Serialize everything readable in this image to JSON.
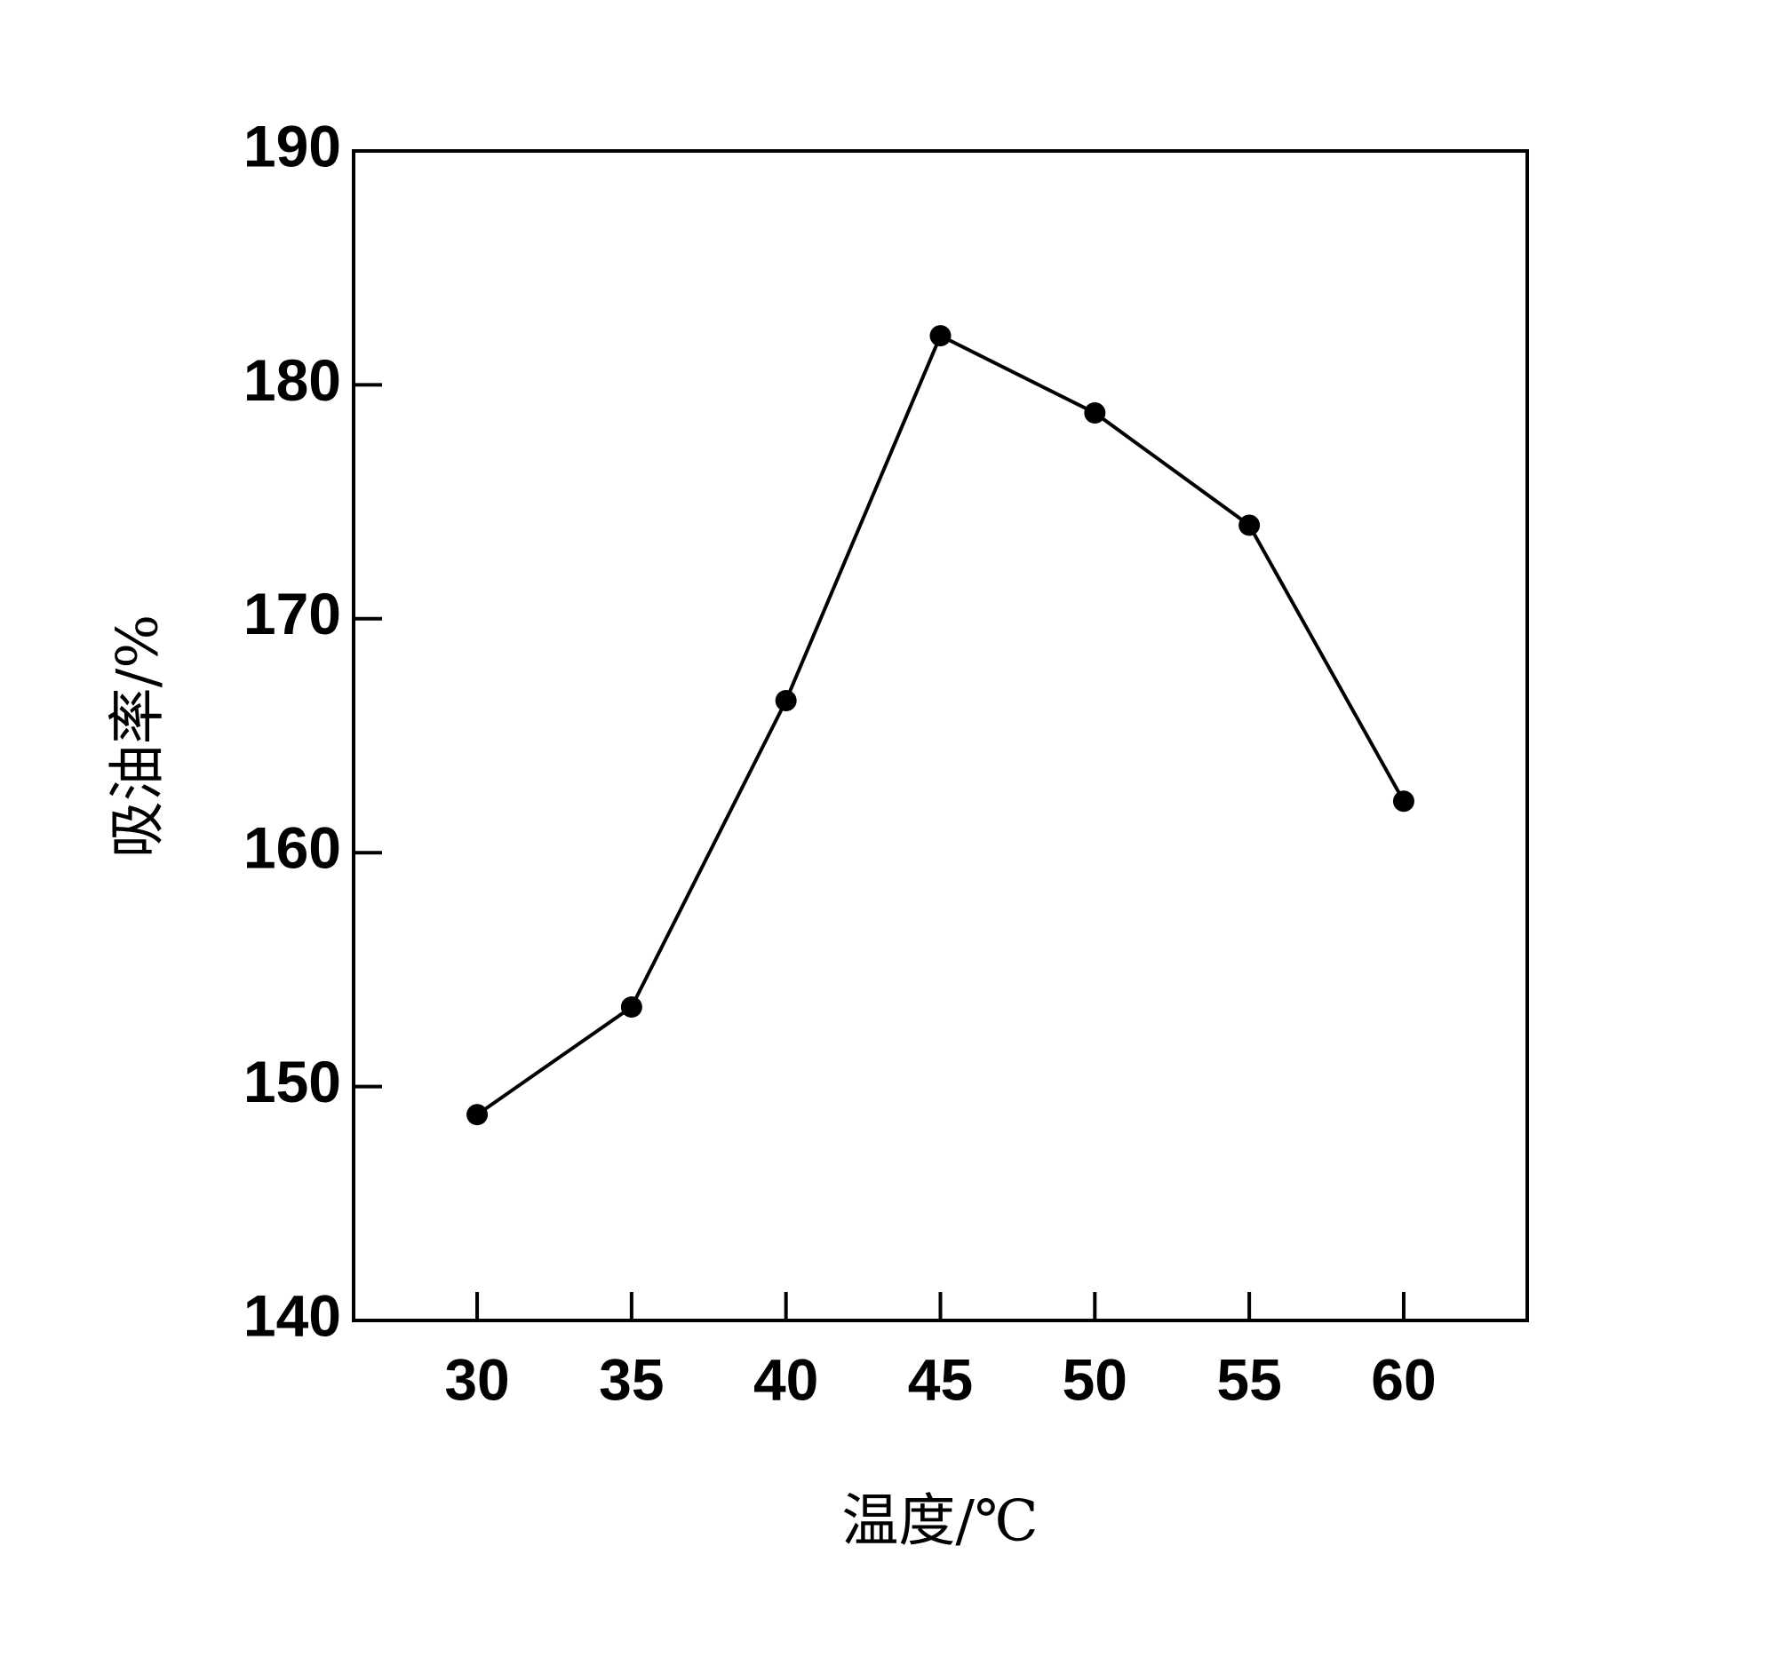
{
  "chart_data": {
    "type": "line",
    "x_label": "温度/℃",
    "y_label": "吸油率/%",
    "x": [
      30,
      35,
      40,
      45,
      50,
      55,
      60
    ],
    "series": [
      {
        "color": "#000000",
        "values": [
          148.8,
          153.4,
          166.5,
          182.1,
          178.8,
          174.0,
          162.2
        ]
      }
    ],
    "xlim": [
      26,
      64
    ],
    "xticks": [
      30,
      35,
      40,
      45,
      50,
      55,
      60
    ],
    "ylim": [
      140,
      190
    ],
    "yticks": [
      140,
      150,
      160,
      170,
      180,
      190
    ],
    "grid": false
  }
}
